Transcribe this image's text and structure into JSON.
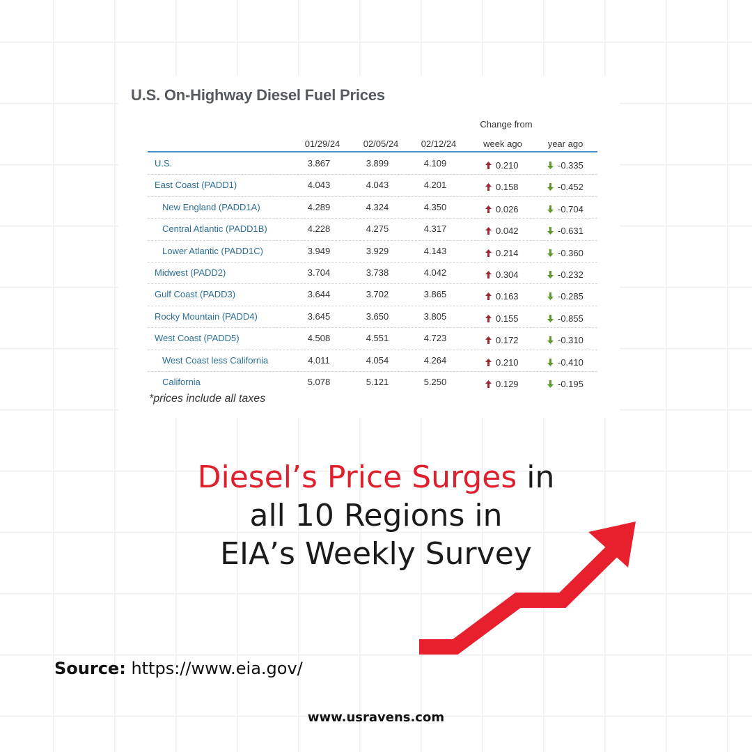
{
  "table": {
    "title": "U.S. On-Highway Diesel Fuel Prices",
    "change_header": "Change from",
    "columns": [
      "01/29/24",
      "02/05/24",
      "02/12/24",
      "week ago",
      "year ago"
    ],
    "rows": [
      {
        "region": "U.S.",
        "indent": 0,
        "v1": "3.867",
        "v2": "3.899",
        "v3": "4.109",
        "week": "0.210",
        "year": "-0.335"
      },
      {
        "region": "East Coast (PADD1)",
        "indent": 0,
        "v1": "4.043",
        "v2": "4.043",
        "v3": "4.201",
        "week": "0.158",
        "year": "-0.452"
      },
      {
        "region": "New England (PADD1A)",
        "indent": 1,
        "v1": "4.289",
        "v2": "4.324",
        "v3": "4.350",
        "week": "0.026",
        "year": "-0.704"
      },
      {
        "region": "Central Atlantic (PADD1B)",
        "indent": 1,
        "v1": "4.228",
        "v2": "4.275",
        "v3": "4.317",
        "week": "0.042",
        "year": "-0.631"
      },
      {
        "region": "Lower Atlantic (PADD1C)",
        "indent": 1,
        "v1": "3.949",
        "v2": "3.929",
        "v3": "4.143",
        "week": "0.214",
        "year": "-0.360"
      },
      {
        "region": "Midwest (PADD2)",
        "indent": 0,
        "v1": "3.704",
        "v2": "3.738",
        "v3": "4.042",
        "week": "0.304",
        "year": "-0.232"
      },
      {
        "region": "Gulf Coast (PADD3)",
        "indent": 0,
        "v1": "3.644",
        "v2": "3.702",
        "v3": "3.865",
        "week": "0.163",
        "year": "-0.285"
      },
      {
        "region": "Rocky Mountain (PADD4)",
        "indent": 0,
        "v1": "3.645",
        "v2": "3.650",
        "v3": "3.805",
        "week": "0.155",
        "year": "-0.855"
      },
      {
        "region": "West Coast (PADD5)",
        "indent": 0,
        "v1": "4.508",
        "v2": "4.551",
        "v3": "4.723",
        "week": "0.172",
        "year": "-0.310"
      },
      {
        "region": "West Coast less California",
        "indent": 1,
        "v1": "4.011",
        "v2": "4.054",
        "v3": "4.264",
        "week": "0.210",
        "year": "-0.410"
      },
      {
        "region": "California",
        "indent": 1,
        "v1": "5.078",
        "v2": "5.121",
        "v3": "5.250",
        "week": "0.129",
        "year": "-0.195"
      }
    ],
    "note": "*prices include all taxes",
    "up_arrow_color": "#9b2a33",
    "down_arrow_color": "#5a9a2a",
    "header_rule_color": "#4a8ec9"
  },
  "headline": {
    "highlight": "Diesel’s Price Surges",
    "rest_line1": " in",
    "line2": "all 10 Regions in",
    "line3": "EIA’s Weekly Survey",
    "highlight_color": "#e01f2d"
  },
  "trend_arrow": {
    "icon": "trend-up-arrow-icon",
    "color": "#e8202e"
  },
  "source": {
    "label": "Source:",
    "url": "https://www.eia.gov/"
  },
  "website": "www.usravens.com"
}
